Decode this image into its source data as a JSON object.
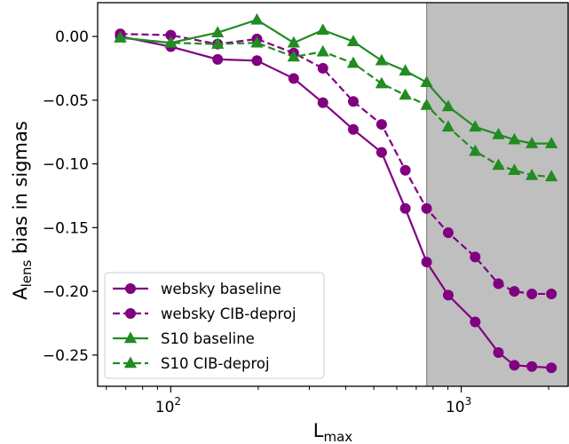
{
  "chart_data": {
    "type": "line",
    "title": "",
    "xlabel": {
      "main": "L",
      "sub": "max"
    },
    "ylabel": {
      "main": "A",
      "sub": "lens",
      "rest": " bias in sigmas"
    },
    "x_scale": "log",
    "xlim": [
      56,
      2350
    ],
    "ylim": [
      -0.2745,
      0.0265
    ],
    "x_ticks": [
      {
        "value": 100,
        "base": "10",
        "exp": "2"
      },
      {
        "value": 1000,
        "base": "10",
        "exp": "3"
      }
    ],
    "y_ticks": [
      0.0,
      -0.05,
      -0.1,
      -0.15,
      -0.2,
      -0.25
    ],
    "y_tick_labels": [
      "0.00",
      "−0.05",
      "−0.10",
      "−0.15",
      "−0.20",
      "−0.25"
    ],
    "shaded_region": {
      "x_from": 760,
      "x_to": 2350,
      "color": "#bfbfbf"
    },
    "grid": false,
    "legend_position": "lower-left",
    "x": [
      67,
      100,
      145,
      198,
      265,
      334,
      425,
      532,
      642,
      760,
      902,
      1117,
      1343,
      1524,
      1751,
      2044
    ],
    "series": [
      {
        "name": "websky baseline",
        "color": "#800080",
        "marker": "circle",
        "linestyle": "solid",
        "values": [
          0.0,
          -0.008,
          -0.018,
          -0.019,
          -0.033,
          -0.052,
          -0.073,
          -0.091,
          -0.135,
          -0.177,
          -0.203,
          -0.224,
          -0.248,
          -0.258,
          -0.259,
          -0.26
        ]
      },
      {
        "name": "websky CIB-deproj",
        "color": "#800080",
        "marker": "circle",
        "linestyle": "dashed",
        "values": [
          0.002,
          0.001,
          -0.006,
          -0.002,
          -0.013,
          -0.025,
          -0.051,
          -0.069,
          -0.105,
          -0.135,
          -0.154,
          -0.173,
          -0.194,
          -0.2,
          -0.202,
          -0.202
        ]
      },
      {
        "name": "S10 baseline",
        "color": "#228b22",
        "marker": "triangle",
        "linestyle": "solid",
        "values": [
          -0.001,
          -0.005,
          0.003,
          0.013,
          -0.005,
          0.005,
          -0.004,
          -0.019,
          -0.027,
          -0.036,
          -0.055,
          -0.071,
          -0.077,
          -0.081,
          -0.084,
          -0.084
        ]
      },
      {
        "name": "S10 CIB-deproj",
        "color": "#228b22",
        "marker": "triangle",
        "linestyle": "dashed",
        "values": [
          -0.001,
          -0.005,
          -0.006,
          -0.005,
          -0.016,
          -0.012,
          -0.021,
          -0.037,
          -0.046,
          -0.054,
          -0.071,
          -0.09,
          -0.101,
          -0.105,
          -0.109,
          -0.11
        ]
      }
    ]
  }
}
